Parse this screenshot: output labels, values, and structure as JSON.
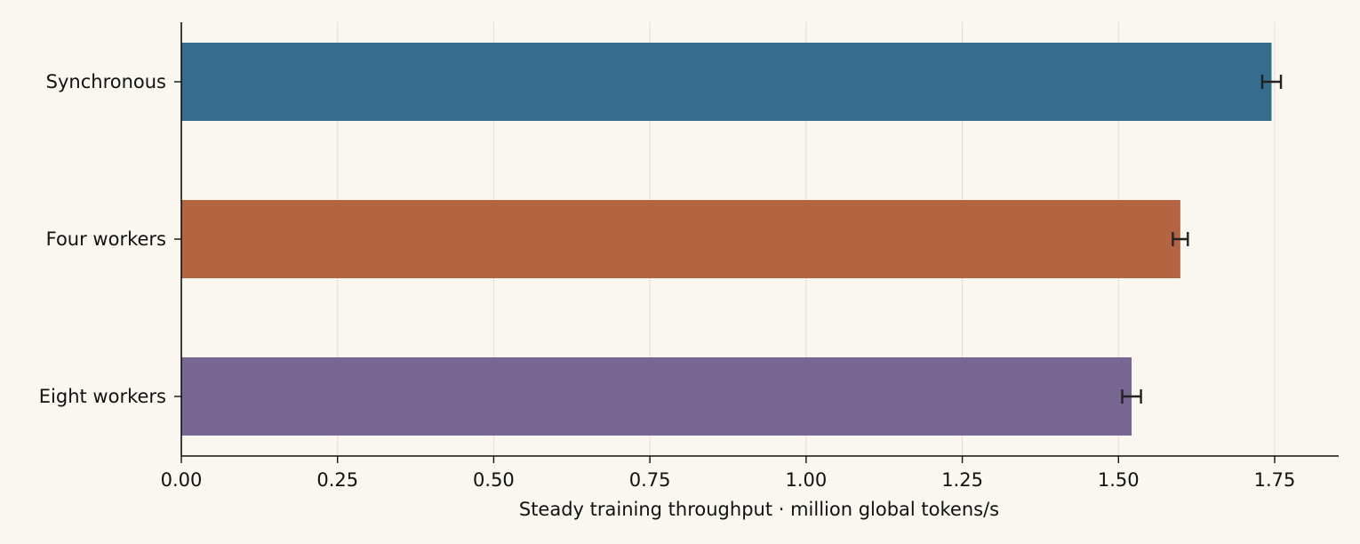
{
  "chart_data": {
    "type": "bar",
    "orientation": "horizontal",
    "title": "",
    "xlabel": "Steady training throughput · million global tokens/s",
    "ylabel": "",
    "xlim": [
      0,
      1.85
    ],
    "x_ticks": [
      0.0,
      0.25,
      0.5,
      0.75,
      1.0,
      1.25,
      1.5,
      1.75
    ],
    "x_tick_labels": [
      "0.00",
      "0.25",
      "0.50",
      "0.75",
      "1.00",
      "1.25",
      "1.50",
      "1.75"
    ],
    "grid": "vertical",
    "categories": [
      "Synchronous",
      "Four workers",
      "Eight workers"
    ],
    "values": [
      1.745,
      1.599,
      1.521
    ],
    "errors": [
      0.015,
      0.012,
      0.015
    ],
    "colors": [
      "#30688a",
      "#b35f3c",
      "#75628f"
    ]
  }
}
